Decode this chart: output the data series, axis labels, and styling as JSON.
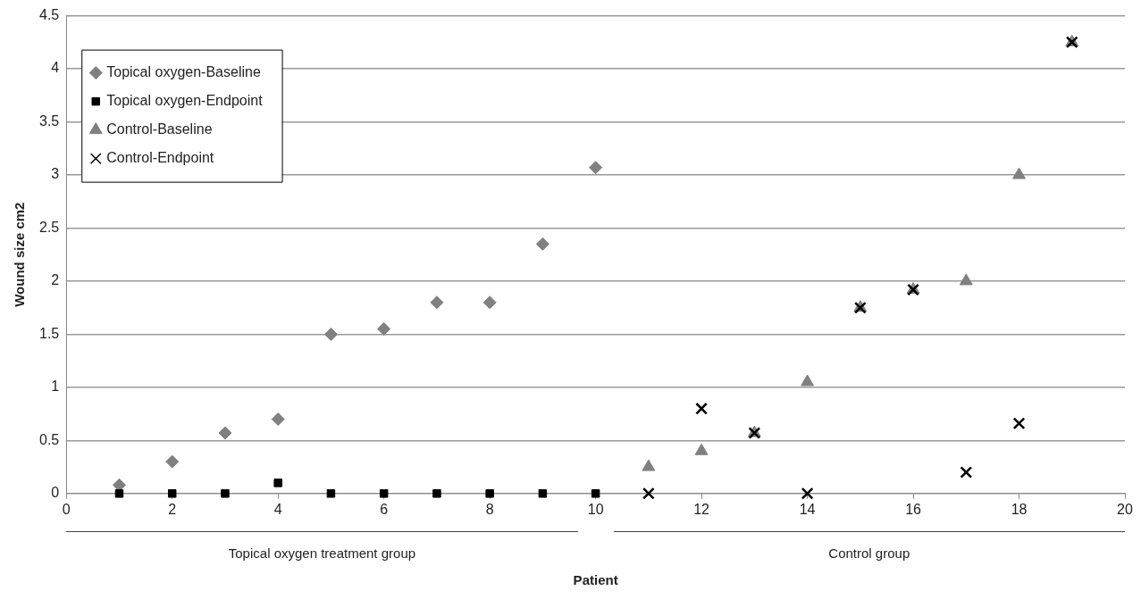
{
  "chart_data": {
    "type": "scatter",
    "xlabel": "Patient",
    "ylabel": "Wound size cm2",
    "xlim": [
      0,
      20
    ],
    "xticks": [
      0,
      2,
      4,
      6,
      8,
      10,
      12,
      14,
      16,
      18,
      20
    ],
    "ylim": [
      0,
      4.5
    ],
    "yticks": [
      0,
      0.5,
      1,
      1.5,
      2,
      2.5,
      3,
      3.5,
      4,
      4.5
    ],
    "grid": "y",
    "legend": "top left",
    "annotations": [
      "Topical oxygen treatment group",
      "Control group"
    ],
    "series": [
      {
        "name": "Topical oxygen-Baseline",
        "color": "#808080",
        "marker": "diamond",
        "x": [
          1,
          2,
          3,
          4,
          5,
          6,
          7,
          8,
          9,
          10
        ],
        "values": [
          0.08,
          0.3,
          0.57,
          0.7,
          1.5,
          1.55,
          1.8,
          1.8,
          2.35,
          3.07
        ]
      },
      {
        "name": "Topical oxygen-Endpoint",
        "color": "#000000",
        "marker": "square",
        "x": [
          1,
          2,
          3,
          4,
          5,
          6,
          7,
          8,
          9,
          10
        ],
        "values": [
          0,
          0,
          0,
          0.1,
          0,
          0,
          0,
          0,
          0,
          0
        ]
      },
      {
        "name": "Control-Baseline",
        "color": "#808080",
        "marker": "triangle",
        "x": [
          11,
          12,
          13,
          14,
          15,
          16,
          17,
          18,
          19
        ],
        "values": [
          0.25,
          0.4,
          0.57,
          1.05,
          1.75,
          1.92,
          2.0,
          3.0,
          4.25
        ]
      },
      {
        "name": "Control-Endpoint",
        "color": "#000000",
        "marker": "cross",
        "x": [
          11,
          12,
          13,
          14,
          15,
          16,
          17,
          18,
          19
        ],
        "values": [
          0,
          0.8,
          0.57,
          0,
          1.75,
          1.92,
          0.2,
          0.66,
          4.25
        ]
      }
    ]
  }
}
